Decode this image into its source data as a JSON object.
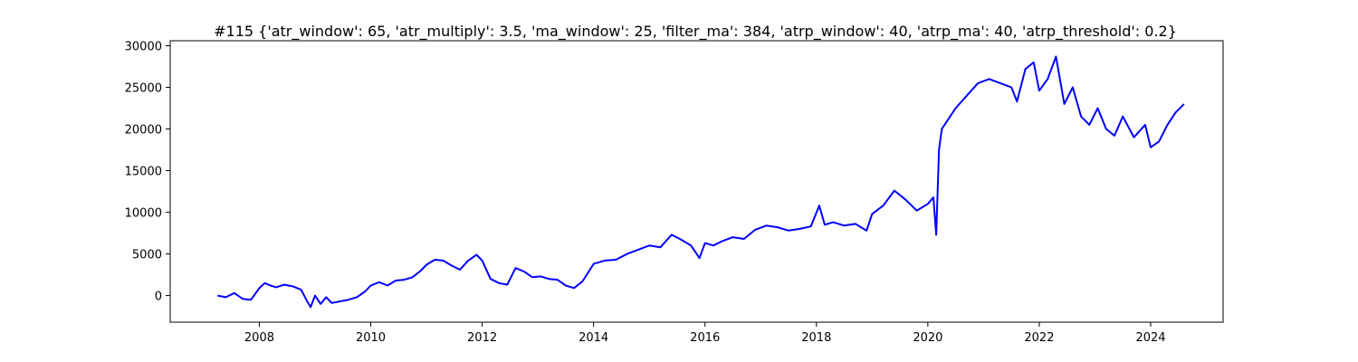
{
  "chart_data": {
    "type": "line",
    "title": "#115 {'atr_window': 65, 'atr_multiply': 3.5, 'ma_window': 25, 'filter_ma': 384, 'atrp_window': 40, 'atrp_ma': 40, 'atrp_threshold': 0.2}",
    "xlabel": "",
    "ylabel": "",
    "xlim": [
      2006.4,
      2025.3
    ],
    "ylim": [
      -3200,
      30600
    ],
    "grid": false,
    "x_ticks": [
      2008,
      2010,
      2012,
      2014,
      2016,
      2018,
      2020,
      2022,
      2024
    ],
    "x_tick_labels": [
      "2008",
      "2010",
      "2012",
      "2014",
      "2016",
      "2018",
      "2020",
      "2022",
      "2024"
    ],
    "y_ticks": [
      0,
      5000,
      10000,
      15000,
      20000,
      25000,
      30000
    ],
    "y_tick_labels": [
      "0",
      "5000",
      "10000",
      "15000",
      "20000",
      "25000",
      "30000"
    ],
    "line_color": "#0000ff",
    "series": [
      {
        "x": [
          2007.25,
          2007.4,
          2007.55,
          2007.7,
          2007.85,
          2008.0,
          2008.1,
          2008.2,
          2008.3,
          2008.45,
          2008.6,
          2008.75,
          2008.85,
          2008.92,
          2009.0,
          2009.1,
          2009.2,
          2009.3,
          2009.45,
          2009.6,
          2009.75,
          2009.9,
          2010.0,
          2010.15,
          2010.3,
          2010.45,
          2010.6,
          2010.75,
          2010.9,
          2011.0,
          2011.15,
          2011.3,
          2011.45,
          2011.6,
          2011.75,
          2011.9,
          2012.0,
          2012.15,
          2012.3,
          2012.45,
          2012.6,
          2012.75,
          2012.9,
          2013.05,
          2013.2,
          2013.35,
          2013.5,
          2013.65,
          2013.8,
          2014.0,
          2014.2,
          2014.4,
          2014.6,
          2014.8,
          2015.0,
          2015.2,
          2015.4,
          2015.55,
          2015.75,
          2015.9,
          2016.0,
          2016.15,
          2016.3,
          2016.5,
          2016.7,
          2016.9,
          2017.1,
          2017.3,
          2017.5,
          2017.7,
          2017.9,
          2018.05,
          2018.15,
          2018.3,
          2018.5,
          2018.7,
          2018.9,
          2019.0,
          2019.2,
          2019.4,
          2019.6,
          2019.8,
          2020.0,
          2020.1,
          2020.15,
          2020.2,
          2020.25,
          2020.35,
          2020.5,
          2020.7,
          2020.9,
          2021.1,
          2021.3,
          2021.5,
          2021.6,
          2021.75,
          2021.9,
          2022.0,
          2022.15,
          2022.3,
          2022.45,
          2022.6,
          2022.75,
          2022.9,
          2023.05,
          2023.2,
          2023.35,
          2023.5,
          2023.7,
          2023.9,
          2024.0,
          2024.15,
          2024.3,
          2024.45,
          2024.6
        ],
        "y": [
          0,
          -200,
          300,
          -400,
          -500,
          900,
          1500,
          1200,
          1000,
          1300,
          1100,
          700,
          -600,
          -1400,
          0,
          -1000,
          -200,
          -900,
          -700,
          -500,
          -200,
          500,
          1200,
          1600,
          1200,
          1800,
          1900,
          2200,
          3000,
          3700,
          4300,
          4200,
          3600,
          3100,
          4200,
          4900,
          4200,
          2000,
          1500,
          1300,
          3300,
          2900,
          2200,
          2300,
          2000,
          1900,
          1200,
          900,
          1700,
          3800,
          4200,
          4300,
          5000,
          5500,
          6000,
          5800,
          7300,
          6800,
          6000,
          4500,
          6300,
          6000,
          6500,
          7000,
          6800,
          7900,
          8400,
          8200,
          7800,
          8000,
          8300,
          10800,
          8500,
          8800,
          8400,
          8600,
          7800,
          9800,
          10800,
          12600,
          11500,
          10200,
          11000,
          11800,
          7300,
          17500,
          20000,
          21000,
          22500,
          24000,
          25500,
          26000,
          25500,
          25000,
          23300,
          27200,
          28000,
          24600,
          26000,
          28700,
          23000,
          25000,
          21500,
          20500,
          22500,
          20000,
          19200,
          21500,
          19000,
          20500,
          17800,
          18500,
          20500,
          22000,
          23000
        ]
      }
    ]
  }
}
